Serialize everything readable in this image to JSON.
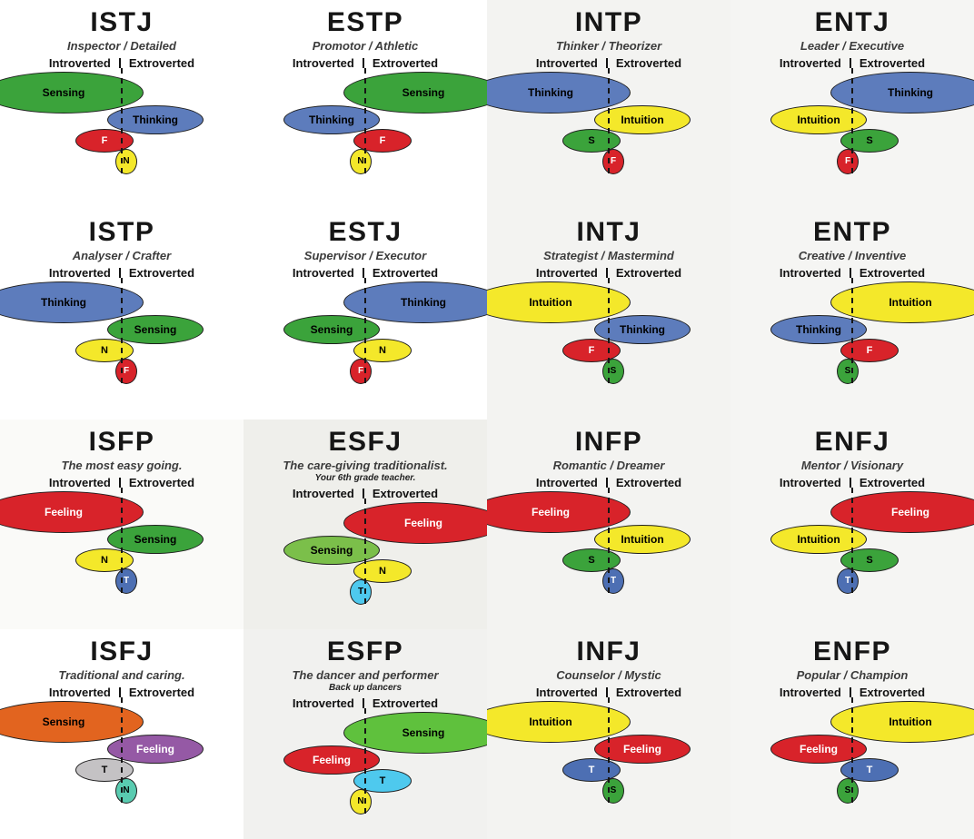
{
  "cells": [
    {
      "title": "ISTJ",
      "subtitle": "Inspector / Detailed",
      "note": "",
      "introverted_label": "Introverted",
      "extroverted_label": "Extroverted",
      "bg": "#ffffff",
      "ellipses": [
        {
          "label": "Sensing",
          "side": "left",
          "rank": 1,
          "color": "#3ba33b",
          "text": "#000000"
        },
        {
          "label": "Thinking",
          "side": "right",
          "rank": 2,
          "color": "#5d7cbc",
          "text": "#000000"
        },
        {
          "label": "F",
          "side": "left",
          "rank": 3,
          "color": "#d8232a",
          "text": "#ffffff"
        },
        {
          "label": "N",
          "side": "right",
          "rank": 4,
          "color": "#f4e82a",
          "text": "#000000"
        }
      ]
    },
    {
      "title": "ESTP",
      "subtitle": "Promotor / Athletic",
      "note": "",
      "introverted_label": "Introverted",
      "extroverted_label": "Extroverted",
      "bg": "#ffffff",
      "ellipses": [
        {
          "label": "Sensing",
          "side": "right",
          "rank": 1,
          "color": "#3ba33b",
          "text": "#000000"
        },
        {
          "label": "Thinking",
          "side": "left",
          "rank": 2,
          "color": "#5d7cbc",
          "text": "#000000"
        },
        {
          "label": "F",
          "side": "right",
          "rank": 3,
          "color": "#d8232a",
          "text": "#ffffff"
        },
        {
          "label": "N",
          "side": "left",
          "rank": 4,
          "color": "#f4e82a",
          "text": "#000000"
        }
      ]
    },
    {
      "title": "INTP",
      "subtitle": "Thinker / Theorizer",
      "note": "",
      "introverted_label": "Introverted",
      "extroverted_label": "Extroverted",
      "bg": "#f3f3f1",
      "ellipses": [
        {
          "label": "Thinking",
          "side": "left",
          "rank": 1,
          "color": "#5d7cbc",
          "text": "#000000"
        },
        {
          "label": "Intuition",
          "side": "right",
          "rank": 2,
          "color": "#f4e82a",
          "text": "#000000"
        },
        {
          "label": "S",
          "side": "left",
          "rank": 3,
          "color": "#3ba33b",
          "text": "#000000"
        },
        {
          "label": "F",
          "side": "right",
          "rank": 4,
          "color": "#d8232a",
          "text": "#ffffff"
        }
      ]
    },
    {
      "title": "ENTJ",
      "subtitle": "Leader / Executive",
      "note": "",
      "introverted_label": "Introverted",
      "extroverted_label": "Extroverted",
      "bg": "#f5f5f3",
      "ellipses": [
        {
          "label": "Thinking",
          "side": "right",
          "rank": 1,
          "color": "#5d7cbc",
          "text": "#000000"
        },
        {
          "label": "Intuition",
          "side": "left",
          "rank": 2,
          "color": "#f4e82a",
          "text": "#000000"
        },
        {
          "label": "S",
          "side": "right",
          "rank": 3,
          "color": "#3ba33b",
          "text": "#000000"
        },
        {
          "label": "F",
          "side": "left",
          "rank": 4,
          "color": "#d8232a",
          "text": "#ffffff"
        }
      ]
    },
    {
      "title": "ISTP",
      "subtitle": "Analyser / Crafter",
      "note": "",
      "introverted_label": "Introverted",
      "extroverted_label": "Extroverted",
      "bg": "#ffffff",
      "ellipses": [
        {
          "label": "Thinking",
          "side": "left",
          "rank": 1,
          "color": "#5d7cbc",
          "text": "#000000"
        },
        {
          "label": "Sensing",
          "side": "right",
          "rank": 2,
          "color": "#3ba33b",
          "text": "#000000"
        },
        {
          "label": "N",
          "side": "left",
          "rank": 3,
          "color": "#f4e82a",
          "text": "#000000"
        },
        {
          "label": "F",
          "side": "right",
          "rank": 4,
          "color": "#d8232a",
          "text": "#ffffff"
        }
      ]
    },
    {
      "title": "ESTJ",
      "subtitle": "Supervisor / Executor",
      "note": "",
      "introverted_label": "Introverted",
      "extroverted_label": "Extroverted",
      "bg": "#ffffff",
      "ellipses": [
        {
          "label": "Thinking",
          "side": "right",
          "rank": 1,
          "color": "#5d7cbc",
          "text": "#000000"
        },
        {
          "label": "Sensing",
          "side": "left",
          "rank": 2,
          "color": "#3ba33b",
          "text": "#000000"
        },
        {
          "label": "N",
          "side": "right",
          "rank": 3,
          "color": "#f4e82a",
          "text": "#000000"
        },
        {
          "label": "F",
          "side": "left",
          "rank": 4,
          "color": "#d8232a",
          "text": "#ffffff"
        }
      ]
    },
    {
      "title": "INTJ",
      "subtitle": "Strategist / Mastermind",
      "note": "",
      "introverted_label": "Introverted",
      "extroverted_label": "Extroverted",
      "bg": "#f3f3f1",
      "ellipses": [
        {
          "label": "Intuition",
          "side": "left",
          "rank": 1,
          "color": "#f4e82a",
          "text": "#000000"
        },
        {
          "label": "Thinking",
          "side": "right",
          "rank": 2,
          "color": "#5d7cbc",
          "text": "#000000"
        },
        {
          "label": "F",
          "side": "left",
          "rank": 3,
          "color": "#d8232a",
          "text": "#ffffff"
        },
        {
          "label": "S",
          "side": "right",
          "rank": 4,
          "color": "#3ba33b",
          "text": "#000000"
        }
      ]
    },
    {
      "title": "ENTP",
      "subtitle": "Creative / Inventive",
      "note": "",
      "introverted_label": "Introverted",
      "extroverted_label": "Extroverted",
      "bg": "#f5f5f3",
      "ellipses": [
        {
          "label": "Intuition",
          "side": "right",
          "rank": 1,
          "color": "#f4e82a",
          "text": "#000000"
        },
        {
          "label": "Thinking",
          "side": "left",
          "rank": 2,
          "color": "#5d7cbc",
          "text": "#000000"
        },
        {
          "label": "F",
          "side": "right",
          "rank": 3,
          "color": "#d8232a",
          "text": "#ffffff"
        },
        {
          "label": "S",
          "side": "left",
          "rank": 4,
          "color": "#3ba33b",
          "text": "#000000"
        }
      ]
    },
    {
      "title": "ISFP",
      "subtitle": "The most easy going.",
      "note": "",
      "introverted_label": "Introverted",
      "extroverted_label": "Extroverted",
      "bg": "#fafaf8",
      "ellipses": [
        {
          "label": "Feeling",
          "side": "left",
          "rank": 1,
          "color": "#d8232a",
          "text": "#ffffff"
        },
        {
          "label": "Sensing",
          "side": "right",
          "rank": 2,
          "color": "#3ba33b",
          "text": "#000000"
        },
        {
          "label": "N",
          "side": "left",
          "rank": 3,
          "color": "#f4e82a",
          "text": "#000000"
        },
        {
          "label": "T",
          "side": "right",
          "rank": 4,
          "color": "#4d6fb3",
          "text": "#ffffff"
        }
      ]
    },
    {
      "title": "ESFJ",
      "subtitle": "The care-giving traditionalist.",
      "note": "Your 6th grade teacher.",
      "introverted_label": "Introverted",
      "extroverted_label": "Extroverted",
      "bg": "#efefeb",
      "ellipses": [
        {
          "label": "Feeling",
          "side": "right",
          "rank": 1,
          "color": "#d8232a",
          "text": "#ffffff"
        },
        {
          "label": "Sensing",
          "side": "left",
          "rank": 2,
          "color": "#7bbf4a",
          "text": "#000000"
        },
        {
          "label": "N",
          "side": "right",
          "rank": 3,
          "color": "#f4e82a",
          "text": "#000000"
        },
        {
          "label": "T",
          "side": "left",
          "rank": 4,
          "color": "#4ec9ee",
          "text": "#000000"
        }
      ]
    },
    {
      "title": "INFP",
      "subtitle": "Romantic / Dreamer",
      "note": "",
      "introverted_label": "Introverted",
      "extroverted_label": "Extroverted",
      "bg": "#f3f3f1",
      "ellipses": [
        {
          "label": "Feeling",
          "side": "left",
          "rank": 1,
          "color": "#d8232a",
          "text": "#ffffff"
        },
        {
          "label": "Intuition",
          "side": "right",
          "rank": 2,
          "color": "#f4e82a",
          "text": "#000000"
        },
        {
          "label": "S",
          "side": "left",
          "rank": 3,
          "color": "#3ba33b",
          "text": "#000000"
        },
        {
          "label": "T",
          "side": "right",
          "rank": 4,
          "color": "#4d6fb3",
          "text": "#ffffff"
        }
      ]
    },
    {
      "title": "ENFJ",
      "subtitle": "Mentor / Visionary",
      "note": "",
      "introverted_label": "Introverted",
      "extroverted_label": "Extroverted",
      "bg": "#f5f5f3",
      "ellipses": [
        {
          "label": "Feeling",
          "side": "right",
          "rank": 1,
          "color": "#d8232a",
          "text": "#ffffff"
        },
        {
          "label": "Intuition",
          "side": "left",
          "rank": 2,
          "color": "#f4e82a",
          "text": "#000000"
        },
        {
          "label": "S",
          "side": "right",
          "rank": 3,
          "color": "#3ba33b",
          "text": "#000000"
        },
        {
          "label": "T",
          "side": "left",
          "rank": 4,
          "color": "#4d6fb3",
          "text": "#ffffff"
        }
      ]
    },
    {
      "title": "ISFJ",
      "subtitle": "Traditional and caring.",
      "note": "",
      "introverted_label": "Introverted",
      "extroverted_label": "Extroverted",
      "bg": "#ffffff",
      "ellipses": [
        {
          "label": "Sensing",
          "side": "left",
          "rank": 1,
          "color": "#e2641f",
          "text": "#000000"
        },
        {
          "label": "Feeling",
          "side": "right",
          "rank": 2,
          "color": "#9559a5",
          "text": "#ffffff"
        },
        {
          "label": "T",
          "side": "left",
          "rank": 3,
          "color": "#c4c2c4",
          "text": "#000000"
        },
        {
          "label": "N",
          "side": "right",
          "rank": 4,
          "color": "#59cbb0",
          "text": "#000000"
        }
      ]
    },
    {
      "title": "ESFP",
      "subtitle": "The dancer and performer",
      "note": "Back up dancers",
      "introverted_label": "Introverted",
      "extroverted_label": "Extroverted",
      "bg": "#f1f1ef",
      "ellipses": [
        {
          "label": "Sensing",
          "side": "right",
          "rank": 1,
          "color": "#5fc13d",
          "text": "#000000"
        },
        {
          "label": "Feeling",
          "side": "left",
          "rank": 2,
          "color": "#d8232a",
          "text": "#ffffff"
        },
        {
          "label": "T",
          "side": "right",
          "rank": 3,
          "color": "#4ec9ee",
          "text": "#000000"
        },
        {
          "label": "N",
          "side": "left",
          "rank": 4,
          "color": "#f4e82a",
          "text": "#000000"
        }
      ]
    },
    {
      "title": "INFJ",
      "subtitle": "Counselor / Mystic",
      "note": "",
      "introverted_label": "Introverted",
      "extroverted_label": "Extroverted",
      "bg": "#f3f3f1",
      "ellipses": [
        {
          "label": "Intuition",
          "side": "left",
          "rank": 1,
          "color": "#f4e82a",
          "text": "#000000"
        },
        {
          "label": "Feeling",
          "side": "right",
          "rank": 2,
          "color": "#d8232a",
          "text": "#ffffff"
        },
        {
          "label": "T",
          "side": "left",
          "rank": 3,
          "color": "#4d6fb3",
          "text": "#ffffff"
        },
        {
          "label": "S",
          "side": "right",
          "rank": 4,
          "color": "#3ba33b",
          "text": "#000000"
        }
      ]
    },
    {
      "title": "ENFP",
      "subtitle": "Popular / Champion",
      "note": "",
      "introverted_label": "Introverted",
      "extroverted_label": "Extroverted",
      "bg": "#f5f5f3",
      "ellipses": [
        {
          "label": "Intuition",
          "side": "right",
          "rank": 1,
          "color": "#f4e82a",
          "text": "#000000"
        },
        {
          "label": "Feeling",
          "side": "left",
          "rank": 2,
          "color": "#d8232a",
          "text": "#ffffff"
        },
        {
          "label": "T",
          "side": "right",
          "rank": 3,
          "color": "#4d6fb3",
          "text": "#ffffff"
        },
        {
          "label": "S",
          "side": "left",
          "rank": 4,
          "color": "#3ba33b",
          "text": "#000000"
        }
      ]
    }
  ]
}
